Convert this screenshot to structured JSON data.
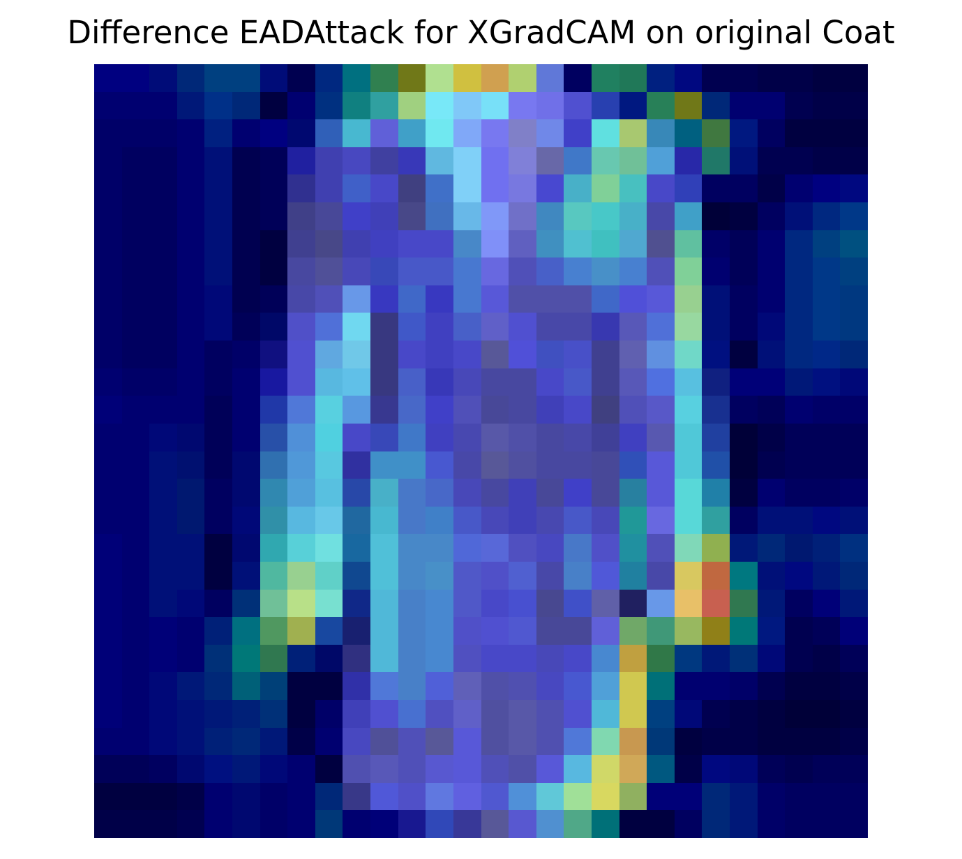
{
  "title": "Difference EADAttack for XGradCAM on original Coat",
  "heatmap": {
    "rows": 28,
    "cols": 28,
    "colors": [
      [
        "#000080",
        "#000080",
        "#000c78",
        "#002878",
        "#004080",
        "#004080",
        "#000c78",
        "#000050",
        "#002880",
        "#007080",
        "#308050",
        "#707818",
        "#b0e090",
        "#d0c040",
        "#d0a050",
        "#b0d070",
        "#6078d8",
        "#000060",
        "#208060",
        "#207858",
        "#002080",
        "#000880",
        "#000050",
        "#000050",
        "#000048",
        "#000048",
        "#000040",
        "#000040"
      ],
      [
        "#000070",
        "#000070",
        "#000070",
        "#001878",
        "#003088",
        "#002878",
        "#000040",
        "#000070",
        "#003080",
        "#108080",
        "#30a0a0",
        "#a0d080",
        "#78e8f8",
        "#80c8f8",
        "#78e0f8",
        "#7878f0",
        "#7070e8",
        "#5050d0",
        "#2840b0",
        "#001880",
        "#288058",
        "#707818",
        "#002878",
        "#000070",
        "#000070",
        "#000050",
        "#000048",
        "#000048"
      ],
      [
        "#000068",
        "#000068",
        "#000068",
        "#000070",
        "#002080",
        "#000070",
        "#000080",
        "#000870",
        "#3060b8",
        "#48b8d0",
        "#6060d8",
        "#40a0c8",
        "#70e8f0",
        "#80a8f8",
        "#7878f0",
        "#8080c8",
        "#7088e8",
        "#4040c8",
        "#60e0e0",
        "#a8c870",
        "#3888b8",
        "#006080",
        "#407840",
        "#001880",
        "#000060",
        "#000040",
        "#000040",
        "#000040"
      ],
      [
        "#000068",
        "#000060",
        "#000060",
        "#000070",
        "#001078",
        "#000050",
        "#000058",
        "#2020a0",
        "#4040b0",
        "#4848c0",
        "#4040a0",
        "#3838b8",
        "#60b8e0",
        "#80d0f8",
        "#7070f0",
        "#8080d8",
        "#6868a8",
        "#4078c8",
        "#68c8b0",
        "#70c098",
        "#50a0d8",
        "#2828a8",
        "#207868",
        "#001078",
        "#000050",
        "#000050",
        "#000048",
        "#000048"
      ],
      [
        "#000068",
        "#000060",
        "#000060",
        "#000070",
        "#001078",
        "#000050",
        "#000058",
        "#303090",
        "#4040b0",
        "#4060c8",
        "#4848c8",
        "#404080",
        "#4070c8",
        "#80d0f8",
        "#7070f0",
        "#7878e0",
        "#4848d0",
        "#48b0c8",
        "#80d098",
        "#48c0c0",
        "#4848c8",
        "#3040b8",
        "#000060",
        "#000060",
        "#000048",
        "#000070",
        "#000080",
        "#000880"
      ],
      [
        "#000068",
        "#000060",
        "#000060",
        "#000070",
        "#001078",
        "#000050",
        "#000058",
        "#404088",
        "#484898",
        "#4040c8",
        "#4040b8",
        "#484888",
        "#4070c0",
        "#68b8e8",
        "#8098f8",
        "#7070c8",
        "#4088c0",
        "#58c8c0",
        "#48c8c8",
        "#48b0c8",
        "#4848a8",
        "#40a0c8",
        "#000038",
        "#000040",
        "#000060",
        "#001078",
        "#002880",
        "#003888"
      ],
      [
        "#000068",
        "#000060",
        "#000060",
        "#000070",
        "#001078",
        "#000050",
        "#000040",
        "#404090",
        "#484888",
        "#4040b0",
        "#4040c0",
        "#4848c8",
        "#4848c8",
        "#4888c8",
        "#8090f8",
        "#6060c0",
        "#4090c0",
        "#50c0d0",
        "#40c0c0",
        "#50a8d0",
        "#505090",
        "#60c0a0",
        "#000068",
        "#000058",
        "#000070",
        "#002880",
        "#004080",
        "#005080"
      ],
      [
        "#000068",
        "#000060",
        "#000060",
        "#000070",
        "#001078",
        "#000050",
        "#000040",
        "#4848a0",
        "#505098",
        "#4848b8",
        "#3848b8",
        "#4858c8",
        "#4858c8",
        "#4878d0",
        "#6868e0",
        "#5050b8",
        "#4860c8",
        "#4880d0",
        "#4890c8",
        "#4880d0",
        "#5050b8",
        "#80d098",
        "#000070",
        "#000058",
        "#000070",
        "#002880",
        "#003888",
        "#004080"
      ],
      [
        "#000068",
        "#000060",
        "#000060",
        "#000070",
        "#000878",
        "#000050",
        "#000058",
        "#4848a8",
        "#5050b8",
        "#6898e8",
        "#3838c0",
        "#4068c8",
        "#3838c0",
        "#4878d0",
        "#5858d8",
        "#5050a8",
        "#5050a8",
        "#5050a8",
        "#4068c8",
        "#5050d8",
        "#5858d8",
        "#98d090",
        "#001078",
        "#000060",
        "#000070",
        "#002880",
        "#003888",
        "#003880"
      ],
      [
        "#000068",
        "#000060",
        "#000060",
        "#000070",
        "#000878",
        "#000058",
        "#000868",
        "#5050c8",
        "#5070d8",
        "#70d8f0",
        "#383880",
        "#4058c8",
        "#4040c0",
        "#4860c8",
        "#6060c8",
        "#5050d0",
        "#4848a8",
        "#4848a8",
        "#3838b0",
        "#5858b8",
        "#5070d8",
        "#98d8a0",
        "#001078",
        "#000060",
        "#000878",
        "#002880",
        "#003888",
        "#003880"
      ],
      [
        "#000068",
        "#000060",
        "#000060",
        "#000070",
        "#000060",
        "#000068",
        "#101080",
        "#5050d0",
        "#60a8e0",
        "#70c8e8",
        "#383880",
        "#4848c8",
        "#4040c0",
        "#4848c8",
        "#585898",
        "#5050d8",
        "#4050c0",
        "#4850c8",
        "#404090",
        "#6060b0",
        "#6090e0",
        "#70d8c8",
        "#001080",
        "#000040",
        "#001078",
        "#002880",
        "#002888",
        "#002878"
      ],
      [
        "#000070",
        "#000068",
        "#000068",
        "#000070",
        "#000060",
        "#000070",
        "#1818a0",
        "#5050d0",
        "#58b8e0",
        "#60c0e8",
        "#383880",
        "#4860c8",
        "#3838b8",
        "#4848b8",
        "#4848a0",
        "#4848a0",
        "#4848c8",
        "#4858c8",
        "#404090",
        "#5858b8",
        "#5070e0",
        "#58c0e0",
        "#102080",
        "#000078",
        "#000078",
        "#001878",
        "#001080",
        "#000878"
      ],
      [
        "#000078",
        "#000070",
        "#000070",
        "#000070",
        "#000058",
        "#000070",
        "#2038a8",
        "#5078d8",
        "#58d0e0",
        "#5898e0",
        "#383890",
        "#4868c8",
        "#4040c8",
        "#5050b8",
        "#484898",
        "#4848a0",
        "#4040b8",
        "#4848c8",
        "#404080",
        "#5050b8",
        "#5858c8",
        "#58d0e0",
        "#183090",
        "#000060",
        "#000058",
        "#000070",
        "#000068",
        "#000068"
      ],
      [
        "#000070",
        "#000070",
        "#000878",
        "#000870",
        "#000058",
        "#000070",
        "#2850a8",
        "#5090d8",
        "#50d0e0",
        "#4848c8",
        "#3848b8",
        "#4078c8",
        "#4040c0",
        "#4848b0",
        "#5858a8",
        "#5050a8",
        "#4848a0",
        "#4848a8",
        "#404098",
        "#4040c0",
        "#5858b0",
        "#50c8d8",
        "#2040a0",
        "#000038",
        "#000048",
        "#000058",
        "#000058",
        "#000058"
      ],
      [
        "#000070",
        "#000070",
        "#001078",
        "#001070",
        "#000058",
        "#000870",
        "#3070b0",
        "#5098d8",
        "#58c8e0",
        "#3030a0",
        "#4090c8",
        "#4090c8",
        "#4858d0",
        "#4848a8",
        "#585898",
        "#5050a0",
        "#4848a0",
        "#4848a0",
        "#484898",
        "#3050b8",
        "#5858d8",
        "#50c8d8",
        "#2050a8",
        "#000038",
        "#000050",
        "#000058",
        "#000058",
        "#000058"
      ],
      [
        "#000070",
        "#000070",
        "#001078",
        "#001870",
        "#000060",
        "#000870",
        "#3088b0",
        "#50a0d8",
        "#58c0e0",
        "#2848a8",
        "#48b0c8",
        "#4878c8",
        "#4868c8",
        "#4848b8",
        "#4848a0",
        "#4040b8",
        "#484898",
        "#4040c8",
        "#484898",
        "#2880a0",
        "#5858d8",
        "#58d8d8",
        "#2080a8",
        "#000040",
        "#000070",
        "#000060",
        "#000060",
        "#000068"
      ],
      [
        "#000070",
        "#000070",
        "#001078",
        "#001870",
        "#000060",
        "#000878",
        "#3090a8",
        "#58b8e0",
        "#68c8e8",
        "#2068a0",
        "#48b8d0",
        "#4878c8",
        "#4080c8",
        "#4858c8",
        "#4848b8",
        "#4040b8",
        "#4848b0",
        "#4858c8",
        "#4848b8",
        "#209898",
        "#6868e0",
        "#58d8d8",
        "#30a0a0",
        "#000060",
        "#001078",
        "#001078",
        "#000880",
        "#001078"
      ],
      [
        "#000078",
        "#000070",
        "#001078",
        "#001078",
        "#000040",
        "#000870",
        "#30a8b0",
        "#58d0d8",
        "#70e0e0",
        "#1868a0",
        "#50c0d8",
        "#4888c8",
        "#4888c8",
        "#5068d8",
        "#5868d8",
        "#5050c0",
        "#4848c0",
        "#4878c8",
        "#5050c8",
        "#2090a0",
        "#5050b8",
        "#80d8b8",
        "#90b050",
        "#001878",
        "#002878",
        "#001870",
        "#002078",
        "#003080"
      ],
      [
        "#000078",
        "#000070",
        "#001078",
        "#001078",
        "#000040",
        "#001078",
        "#50b8a0",
        "#98d090",
        "#60d0c8",
        "#104890",
        "#50c0d8",
        "#4888c8",
        "#4890c8",
        "#5058c8",
        "#5050c8",
        "#5060d0",
        "#4848a8",
        "#4880c8",
        "#5058d8",
        "#2080a0",
        "#4848a8",
        "#d8c860",
        "#c06840",
        "#007880",
        "#001078",
        "#000880",
        "#001878",
        "#002878"
      ],
      [
        "#000078",
        "#000070",
        "#001078",
        "#000878",
        "#000060",
        "#003078",
        "#70c098",
        "#b8e088",
        "#78e0d0",
        "#102888",
        "#50b8d8",
        "#4880c8",
        "#4888d0",
        "#5058c8",
        "#4848c8",
        "#4850d0",
        "#484890",
        "#4050c8",
        "#6060a8",
        "#202060",
        "#6898e8",
        "#e8c068",
        "#c86050",
        "#307850",
        "#001878",
        "#000060",
        "#000078",
        "#001878"
      ],
      [
        "#000078",
        "#000070",
        "#000078",
        "#000070",
        "#002078",
        "#007080",
        "#509860",
        "#a0b050",
        "#1848a0",
        "#182070",
        "#50b8d8",
        "#4880c8",
        "#4888d0",
        "#5050c8",
        "#5050d0",
        "#5058d0",
        "#484898",
        "#484898",
        "#6060d8",
        "#70a868",
        "#409878",
        "#98b860",
        "#908018",
        "#007878",
        "#001880",
        "#000050",
        "#000058",
        "#000078"
      ],
      [
        "#000078",
        "#000070",
        "#000078",
        "#000070",
        "#003078",
        "#007878",
        "#307850",
        "#002078",
        "#000868",
        "#303080",
        "#50b8d8",
        "#4880c8",
        "#4888d0",
        "#5050c0",
        "#4848c8",
        "#4848c8",
        "#4848b8",
        "#4848c8",
        "#4888d0",
        "#c0a040",
        "#307848",
        "#003880",
        "#001878",
        "#003078",
        "#000878",
        "#000050",
        "#000048",
        "#000058"
      ],
      [
        "#000078",
        "#000070",
        "#000878",
        "#001878",
        "#002878",
        "#006078",
        "#004078",
        "#000040",
        "#000040",
        "#3030a8",
        "#5078d8",
        "#4880c8",
        "#5060d8",
        "#6060b8",
        "#5050a8",
        "#5050b0",
        "#4848c0",
        "#4858d0",
        "#50a0d8",
        "#d0c850",
        "#007078",
        "#000070",
        "#000070",
        "#000068",
        "#000050",
        "#000040",
        "#000040",
        "#000048"
      ],
      [
        "#000078",
        "#000070",
        "#000878",
        "#001078",
        "#001878",
        "#002078",
        "#003078",
        "#000040",
        "#000068",
        "#4040b8",
        "#5050d0",
        "#4870d0",
        "#5050c0",
        "#6060c8",
        "#5050a0",
        "#5858a8",
        "#5050b0",
        "#5050d0",
        "#50b8d8",
        "#d0c850",
        "#004080",
        "#000878",
        "#000050",
        "#000048",
        "#000040",
        "#000038",
        "#000038",
        "#000040"
      ],
      [
        "#000070",
        "#000070",
        "#000878",
        "#001078",
        "#002078",
        "#002878",
        "#001878",
        "#000048",
        "#000070",
        "#4848c0",
        "#505098",
        "#5050b8",
        "#585898",
        "#5858d8",
        "#5050a0",
        "#5858a8",
        "#5050b0",
        "#5078d8",
        "#80d8b0",
        "#c89850",
        "#003878",
        "#000040",
        "#000048",
        "#000048",
        "#000040",
        "#000040",
        "#000040",
        "#000048"
      ],
      [
        "#000058",
        "#000058",
        "#000060",
        "#000870",
        "#001080",
        "#001878",
        "#000878",
        "#000070",
        "#000040",
        "#5050b0",
        "#5858b8",
        "#5050b8",
        "#5858d0",
        "#5858d8",
        "#5050b8",
        "#5050a8",
        "#5858d8",
        "#58b8e0",
        "#d0d868",
        "#d0a858",
        "#005880",
        "#000048",
        "#000880",
        "#000878",
        "#000058",
        "#000050",
        "#000058",
        "#000058"
      ],
      [
        "#000040",
        "#000040",
        "#000040",
        "#000048",
        "#000070",
        "#000870",
        "#000068",
        "#000070",
        "#002878",
        "#383888",
        "#5058d8",
        "#5050c8",
        "#6078e0",
        "#6060e0",
        "#5058d0",
        "#5090d8",
        "#60c8d8",
        "#a0e098",
        "#d8d860",
        "#90b060",
        "#000078",
        "#000078",
        "#002878",
        "#001878",
        "#000068",
        "#000060",
        "#000060",
        "#000060"
      ],
      [
        "#000048",
        "#000048",
        "#000048",
        "#000050",
        "#000070",
        "#000870",
        "#000068",
        "#000070",
        "#003878",
        "#000070",
        "#000078",
        "#181890",
        "#3048b8",
        "#383898",
        "#585898",
        "#5858d0",
        "#5090d0",
        "#50a888",
        "#007078",
        "#000040",
        "#000040",
        "#000060",
        "#002878",
        "#001878",
        "#000068",
        "#000060",
        "#000060",
        "#000060"
      ]
    ]
  }
}
